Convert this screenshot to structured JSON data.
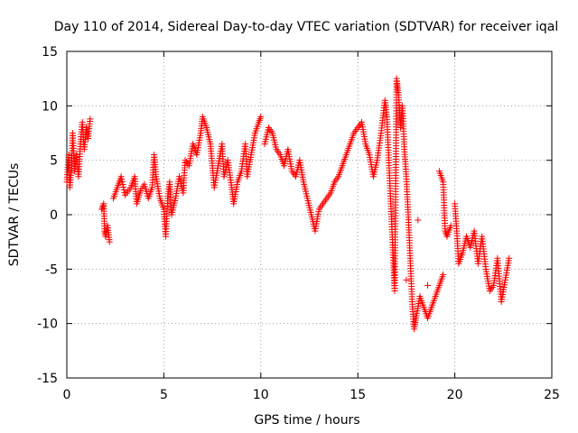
{
  "chart_data": {
    "type": "scatter",
    "title": "Day 110 of 2014, Sidereal Day-to-day VTEC variation (SDTVAR) for receiver iqal",
    "xlabel": "GPS time / hours",
    "ylabel": "SDTVAR / TECUs",
    "xlim": [
      0,
      25
    ],
    "ylim": [
      -15,
      15
    ],
    "xticks": [
      0,
      5,
      10,
      15,
      20,
      25
    ],
    "yticks": [
      -15,
      -10,
      -5,
      0,
      5,
      10,
      15
    ],
    "grid": true,
    "marker": "+",
    "color": "#ff0000",
    "series": [
      {
        "name": "SDTVAR",
        "segments": [
          [
            [
              0.0,
              3.0
            ],
            [
              0.1,
              5.5
            ],
            [
              0.15,
              2.5
            ],
            [
              0.25,
              4.5
            ],
            [
              0.3,
              7.5
            ],
            [
              0.4,
              4.0
            ],
            [
              0.5,
              5.5
            ],
            [
              0.6,
              3.5
            ],
            [
              0.7,
              6.5
            ],
            [
              0.8,
              8.5
            ],
            [
              0.9,
              6.0
            ],
            [
              1.0,
              8.0
            ],
            [
              1.1,
              7.0
            ],
            [
              1.2,
              8.8
            ]
          ],
          [
            [
              1.8,
              0.5
            ],
            [
              1.9,
              1.0
            ],
            [
              1.95,
              -1.5
            ],
            [
              2.0,
              -2.0
            ],
            [
              2.1,
              -1.0
            ],
            [
              2.2,
              -2.5
            ]
          ],
          [
            [
              2.4,
              1.5
            ],
            [
              2.6,
              2.5
            ],
            [
              2.8,
              3.5
            ],
            [
              3.0,
              1.8
            ],
            [
              3.3,
              2.5
            ],
            [
              3.5,
              3.5
            ],
            [
              3.6,
              1.0
            ],
            [
              3.8,
              2.2
            ],
            [
              4.0,
              2.8
            ],
            [
              4.2,
              1.5
            ],
            [
              4.4,
              2.5
            ],
            [
              4.5,
              5.5
            ],
            [
              4.6,
              3.5
            ],
            [
              4.8,
              1.5
            ],
            [
              5.0,
              0.5
            ],
            [
              5.1,
              -2.0
            ],
            [
              5.2,
              1.5
            ],
            [
              5.3,
              3.0
            ],
            [
              5.4,
              0.0
            ],
            [
              5.6,
              1.5
            ],
            [
              5.8,
              3.5
            ],
            [
              6.0,
              2.0
            ],
            [
              6.1,
              5.0
            ],
            [
              6.3,
              4.5
            ],
            [
              6.5,
              6.5
            ],
            [
              6.7,
              5.5
            ],
            [
              6.9,
              7.5
            ],
            [
              7.0,
              9.0
            ],
            [
              7.2,
              8.0
            ],
            [
              7.4,
              6.5
            ],
            [
              7.5,
              4.5
            ],
            [
              7.6,
              2.5
            ],
            [
              7.8,
              4.5
            ],
            [
              8.0,
              6.5
            ],
            [
              8.1,
              3.5
            ],
            [
              8.3,
              5.0
            ],
            [
              8.5,
              2.5
            ],
            [
              8.6,
              1.0
            ],
            [
              8.8,
              3.0
            ],
            [
              9.0,
              4.0
            ],
            [
              9.2,
              6.5
            ],
            [
              9.3,
              3.5
            ],
            [
              9.5,
              5.5
            ],
            [
              9.7,
              7.5
            ],
            [
              9.9,
              8.5
            ],
            [
              10.0,
              9.0
            ]
          ],
          [
            [
              10.2,
              6.5
            ],
            [
              10.4,
              8.0
            ],
            [
              10.6,
              7.5
            ],
            [
              10.8,
              6.0
            ],
            [
              11.0,
              5.5
            ],
            [
              11.2,
              4.5
            ],
            [
              11.4,
              6.0
            ],
            [
              11.6,
              4.0
            ],
            [
              11.8,
              3.5
            ],
            [
              12.0,
              5.0
            ],
            [
              12.2,
              3.0
            ],
            [
              12.4,
              1.5
            ],
            [
              12.6,
              0.0
            ],
            [
              12.8,
              -1.5
            ],
            [
              13.0,
              0.5
            ],
            [
              13.2,
              1.0
            ],
            [
              13.4,
              1.5
            ],
            [
              13.6,
              2.0
            ],
            [
              13.8,
              3.0
            ],
            [
              14.0,
              3.5
            ],
            [
              14.2,
              4.5
            ],
            [
              14.4,
              5.5
            ],
            [
              14.6,
              6.5
            ],
            [
              14.8,
              7.5
            ],
            [
              15.0,
              8.0
            ],
            [
              15.2,
              8.5
            ],
            [
              15.4,
              6.5
            ],
            [
              15.6,
              5.5
            ],
            [
              15.8,
              3.5
            ],
            [
              16.0,
              5.0
            ],
            [
              16.2,
              7.5
            ],
            [
              16.4,
              10.5
            ],
            [
              16.5,
              9.0
            ],
            [
              16.6,
              5.0
            ],
            [
              16.7,
              1.0
            ],
            [
              16.8,
              -3.0
            ],
            [
              16.9,
              -7.0
            ],
            [
              17.0,
              12.5
            ],
            [
              17.1,
              11.0
            ],
            [
              17.2,
              8.0
            ],
            [
              17.3,
              10.0
            ],
            [
              17.4,
              6.0
            ],
            [
              17.5,
              3.5
            ],
            [
              17.6,
              0.0
            ],
            [
              17.7,
              -4.0
            ],
            [
              17.8,
              -8.0
            ],
            [
              17.9,
              -10.5
            ],
            [
              18.0,
              -9.5
            ],
            [
              18.2,
              -7.5
            ],
            [
              18.4,
              -8.5
            ],
            [
              18.6,
              -9.5
            ],
            [
              18.8,
              -8.5
            ],
            [
              19.0,
              -7.5
            ],
            [
              19.2,
              -6.5
            ],
            [
              19.4,
              -5.5
            ]
          ],
          [
            [
              19.2,
              4.0
            ],
            [
              19.4,
              3.0
            ],
            [
              19.5,
              -1.5
            ],
            [
              19.6,
              -2.0
            ],
            [
              19.8,
              -1.0
            ]
          ],
          [
            [
              20.0,
              1.0
            ],
            [
              20.1,
              -1.5
            ],
            [
              20.2,
              -4.5
            ],
            [
              20.4,
              -3.5
            ],
            [
              20.6,
              -2.0
            ],
            [
              20.8,
              -3.0
            ],
            [
              21.0,
              -1.5
            ],
            [
              21.2,
              -4.5
            ],
            [
              21.4,
              -2.0
            ],
            [
              21.6,
              -5.0
            ],
            [
              21.8,
              -7.0
            ],
            [
              22.0,
              -6.5
            ],
            [
              22.2,
              -4.0
            ],
            [
              22.4,
              -8.0
            ],
            [
              22.6,
              -6.0
            ],
            [
              22.8,
              -4.0
            ]
          ]
        ],
        "isolated_points": [
          [
            18.1,
            -0.5
          ],
          [
            17.5,
            -6.0
          ],
          [
            18.6,
            -6.5
          ]
        ]
      }
    ]
  }
}
